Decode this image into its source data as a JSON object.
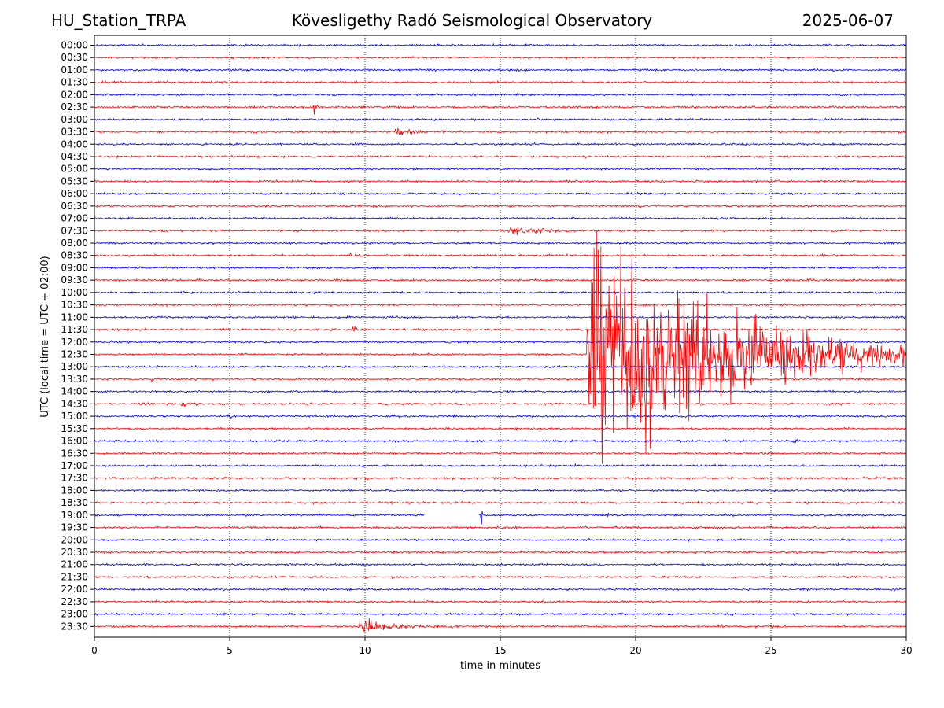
{
  "header": {
    "station": "HU_Station_TRPA",
    "observatory": "Kövesligethy Radó Seismological Observatory",
    "date": "2025-06-07"
  },
  "chart_data": {
    "type": "line",
    "title": "Kövesligethy Radó Seismological Observatory",
    "xlabel": "time in minutes",
    "ylabel": "UTC (local time = UTC + 02:00)",
    "xlim": [
      0,
      30
    ],
    "x_ticks": [
      0,
      5,
      10,
      15,
      20,
      25,
      30
    ],
    "grid": "vertical dotted lines at x ticks",
    "row_labels": [
      "00:00",
      "00:30",
      "01:00",
      "01:30",
      "02:00",
      "02:30",
      "03:00",
      "03:30",
      "04:00",
      "04:30",
      "05:00",
      "05:30",
      "06:00",
      "06:30",
      "07:00",
      "07:30",
      "08:00",
      "08:30",
      "09:00",
      "09:30",
      "10:00",
      "10:30",
      "11:00",
      "11:30",
      "12:00",
      "12:30",
      "13:00",
      "13:30",
      "14:00",
      "14:30",
      "15:00",
      "15:30",
      "16:00",
      "16:30",
      "17:00",
      "17:30",
      "18:00",
      "18:30",
      "19:00",
      "19:30",
      "20:00",
      "20:30",
      "21:00",
      "21:30",
      "22:00",
      "22:30",
      "23:00",
      "23:30"
    ],
    "colors": {
      "even_rows": "#0000ff",
      "odd_rows": "#ff0000"
    },
    "events": [
      {
        "row": "02:30",
        "start_min": 8.1,
        "amplitude": 2.0,
        "duration_min": 0.15
      },
      {
        "row": "03:30",
        "start_min": 11.1,
        "amplitude": 0.6,
        "duration_min": 1.2
      },
      {
        "row": "07:30",
        "start_min": 15.3,
        "amplitude": 0.6,
        "duration_min": 2.5
      },
      {
        "row": "08:30",
        "start_min": 9.4,
        "amplitude": 0.15,
        "duration_min": 1.0
      },
      {
        "row": "09:30",
        "start_min": 26.4,
        "amplitude": 0.3,
        "duration_min": 0.2
      },
      {
        "row": "11:30",
        "start_min": 9.5,
        "amplitude": 0.45,
        "duration_min": 0.4
      },
      {
        "row": "12:30",
        "start_min": 18.2,
        "amplitude": 14.0,
        "duration_min": 11.8
      },
      {
        "row": "13:30",
        "start_min": 2.1,
        "amplitude": 0.25,
        "duration_min": 0.6
      },
      {
        "row": "14:30",
        "start_min": 3.2,
        "amplitude": 0.25,
        "duration_min": 0.8
      },
      {
        "row": "15:00",
        "start_min": 4.9,
        "amplitude": 0.35,
        "duration_min": 0.3
      },
      {
        "row": "16:00",
        "start_min": 25.8,
        "amplitude": 0.35,
        "duration_min": 0.3
      },
      {
        "row": "19:00",
        "start_min": 14.3,
        "amplitude": 25.0,
        "duration_min": 0.08
      },
      {
        "row": "19:00",
        "start_min": 18.95,
        "amplitude": 0.35,
        "duration_min": 0.1
      },
      {
        "row": "23:30",
        "start_min": 9.8,
        "amplitude": 0.9,
        "duration_min": 2.5
      },
      {
        "row": "23:30",
        "start_min": 23.0,
        "amplitude": 0.2,
        "duration_min": 0.8
      }
    ],
    "gaps": [
      {
        "row": "19:00",
        "from_min": 12.2,
        "to_min": 14.2
      }
    ]
  }
}
